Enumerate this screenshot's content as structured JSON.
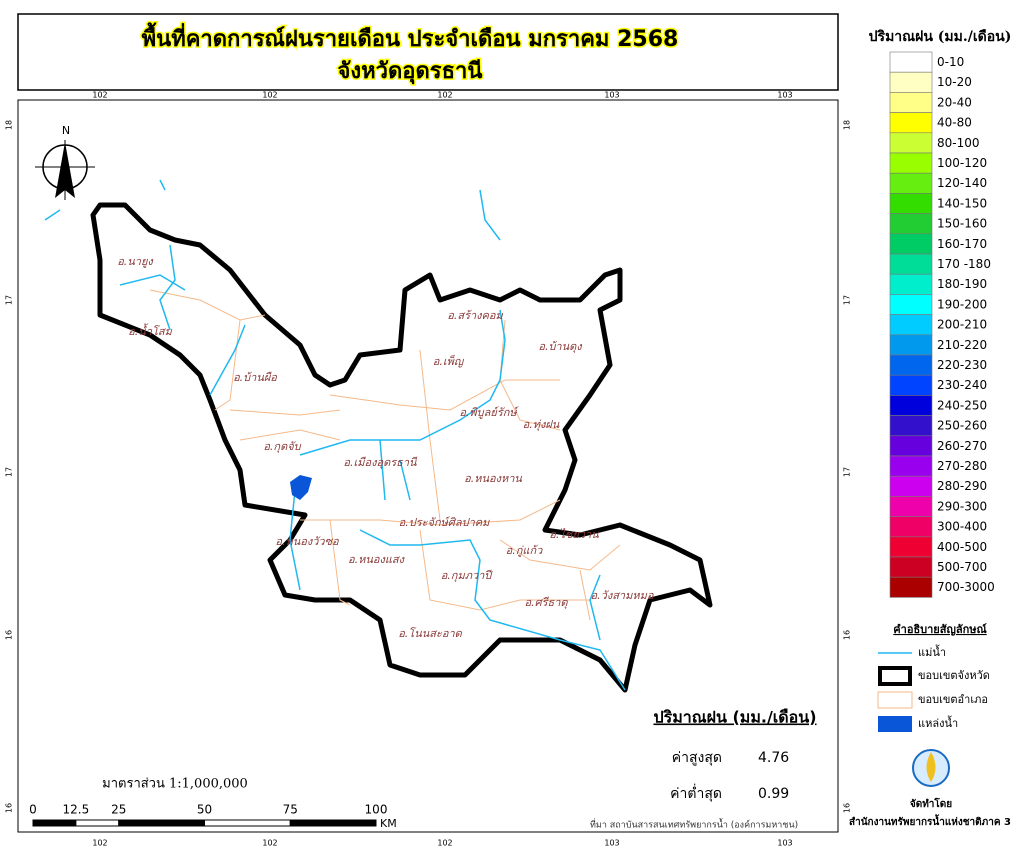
{
  "title": {
    "line1": "พื้นที่คาดการณ์ฝนรายเดือน ประจำเดือน มกราคม 2568",
    "line2": "จังหวัดอุดรธานี"
  },
  "grid": {
    "lon_labels": [
      "102",
      "102",
      "102",
      "103",
      "103"
    ],
    "lat_labels": [
      "18",
      "17",
      "17",
      "16",
      "16"
    ]
  },
  "north": "N",
  "districts": [
    "อ.นายูง",
    "อ.น้ำโสม",
    "อ.บ้านผือ",
    "อ.กุดจับ",
    "อ.หนองวัวซอ",
    "อ.เมืองอุดรธานี",
    "อ.สร้างคอม",
    "อ.เพ็ญ",
    "อ.บ้านดุง",
    "อ.พิบูลย์รักษ์",
    "อ.ทุ่งฝน",
    "อ.หนองหาน",
    "อ.ประจักษ์ศิลปาคม",
    "อ.ไชยวาน",
    "อ.กู่แก้ว",
    "อ.หนองแสง",
    "อ.กุมภวาปี",
    "อ.ศรีธาตุ",
    "อ.วังสามหมอ",
    "อ.โนนสะอาด"
  ],
  "legend": {
    "title": "ปริมาณฝน (มม./เดือน)",
    "items": [
      {
        "label": "0-10",
        "color": "#ffffff"
      },
      {
        "label": "10-20",
        "color": "#ffffc4"
      },
      {
        "label": "20-40",
        "color": "#ffff88"
      },
      {
        "label": "40-80",
        "color": "#ffff00"
      },
      {
        "label": "80-100",
        "color": "#ccff33"
      },
      {
        "label": "100-120",
        "color": "#99ff00"
      },
      {
        "label": "120-140",
        "color": "#66ee11"
      },
      {
        "label": "140-150",
        "color": "#33dd00"
      },
      {
        "label": "150-160",
        "color": "#22cc33"
      },
      {
        "label": "160-170",
        "color": "#00cc66"
      },
      {
        "label": "170 -180",
        "color": "#00dd99"
      },
      {
        "label": "180-190",
        "color": "#00eecc"
      },
      {
        "label": "190-200",
        "color": "#00ffff"
      },
      {
        "label": "200-210",
        "color": "#00ccff"
      },
      {
        "label": "210-220",
        "color": "#0099ee"
      },
      {
        "label": "220-230",
        "color": "#0066ee"
      },
      {
        "label": "230-240",
        "color": "#0044ff"
      },
      {
        "label": "240-250",
        "color": "#0000dd"
      },
      {
        "label": "250-260",
        "color": "#3311cc"
      },
      {
        "label": "260-270",
        "color": "#6600dd"
      },
      {
        "label": "270-280",
        "color": "#9900ee"
      },
      {
        "label": "280-290",
        "color": "#cc00ee"
      },
      {
        "label": "290-300",
        "color": "#ee00aa"
      },
      {
        "label": "300-400",
        "color": "#ee0066"
      },
      {
        "label": "400-500",
        "color": "#ee0033"
      },
      {
        "label": "500-700",
        "color": "#cc0022"
      },
      {
        "label": "700-3000",
        "color": "#aa0000"
      }
    ]
  },
  "symbols": {
    "title": "คำอธิบายสัญลักษณ์",
    "river": "แม่น้ำ",
    "province": "ขอบเขตจังหวัด",
    "district": "ขอบเขตอำเภอ",
    "water": "แหล่งน้ำ"
  },
  "stats": {
    "title": "ปริมาณฝน (มม./เดือน)",
    "max_label": "ค่าสูงสุด",
    "max": 4.76,
    "min_label": "ค่าต่ำสุด",
    "min": 0.99
  },
  "scale": {
    "label": "มาตราส่วน 1:1,000,000",
    "ticks": [
      0,
      12.5,
      25,
      50,
      75,
      100
    ],
    "unit": "KM"
  },
  "source": "ที่มา  สถาบันสารสนเทศทรัพยากรน้ำ (องค์การมหาชน)",
  "credit": {
    "label": "จัดทำโดย",
    "org": "สำนักงานทรัพยากรน้ำแห่งชาติภาค 3"
  }
}
